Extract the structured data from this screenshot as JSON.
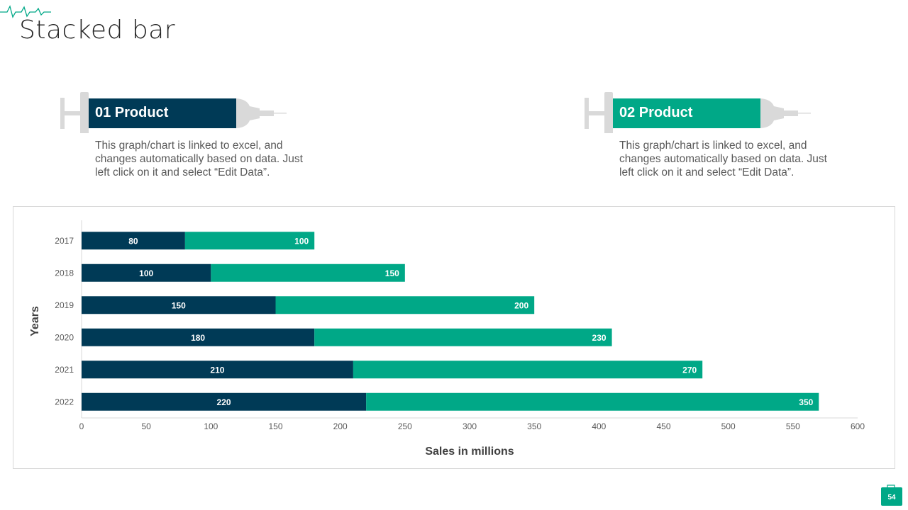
{
  "slide": {
    "title": "Stacked bar",
    "page_number": "54"
  },
  "products": [
    {
      "label": "01 Product",
      "description": "This graph/chart is linked to excel, and changes automatically based on data. Just left click on it and select “Edit Data”.",
      "color": "#003a56"
    },
    {
      "label": "02 Product",
      "description": "This graph/chart is linked to excel, and changes automatically based on data. Just left click on it and select “Edit Data”.",
      "color": "#00a887"
    }
  ],
  "chart_data": {
    "type": "bar",
    "orientation": "horizontal",
    "stacked": true,
    "categories": [
      "2017",
      "2018",
      "2019",
      "2020",
      "2021",
      "2022"
    ],
    "series": [
      {
        "values": [
          80,
          100,
          150,
          180,
          210,
          220
        ],
        "color": "#003a56"
      },
      {
        "values": [
          100,
          150,
          200,
          230,
          270,
          350
        ],
        "color": "#00a887"
      }
    ],
    "xlabel": "Sales in millions",
    "ylabel": "Years",
    "xlim": [
      0,
      600
    ],
    "xticks": [
      0,
      50,
      100,
      150,
      200,
      250,
      300,
      350,
      400,
      450,
      500,
      550,
      600
    ],
    "grid": false,
    "data_labels": true
  }
}
